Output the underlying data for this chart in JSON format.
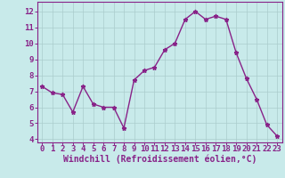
{
  "x": [
    0,
    1,
    2,
    3,
    4,
    5,
    6,
    7,
    8,
    9,
    10,
    11,
    12,
    13,
    14,
    15,
    16,
    17,
    18,
    19,
    20,
    21,
    22,
    23
  ],
  "y": [
    7.3,
    6.9,
    6.8,
    5.7,
    7.3,
    6.2,
    6.0,
    6.0,
    4.7,
    7.7,
    8.3,
    8.5,
    9.6,
    10.0,
    11.5,
    12.0,
    11.5,
    11.7,
    11.5,
    9.4,
    7.8,
    6.5,
    4.9,
    4.2
  ],
  "line_color": "#882288",
  "marker": "*",
  "marker_size": 3.5,
  "background_color": "#c8eaea",
  "grid_color": "#aacccc",
  "xlabel": "Windchill (Refroidissement éolien,°C)",
  "xlim": [
    -0.5,
    23.5
  ],
  "ylim": [
    3.8,
    12.6
  ],
  "yticks": [
    4,
    5,
    6,
    7,
    8,
    9,
    10,
    11,
    12
  ],
  "xticks": [
    0,
    1,
    2,
    3,
    4,
    5,
    6,
    7,
    8,
    9,
    10,
    11,
    12,
    13,
    14,
    15,
    16,
    17,
    18,
    19,
    20,
    21,
    22,
    23
  ],
  "line_width": 1.0,
  "tick_label_fontsize": 6.5,
  "xlabel_fontsize": 7.0,
  "axes_color": "#882288",
  "spine_color": "#882288"
}
